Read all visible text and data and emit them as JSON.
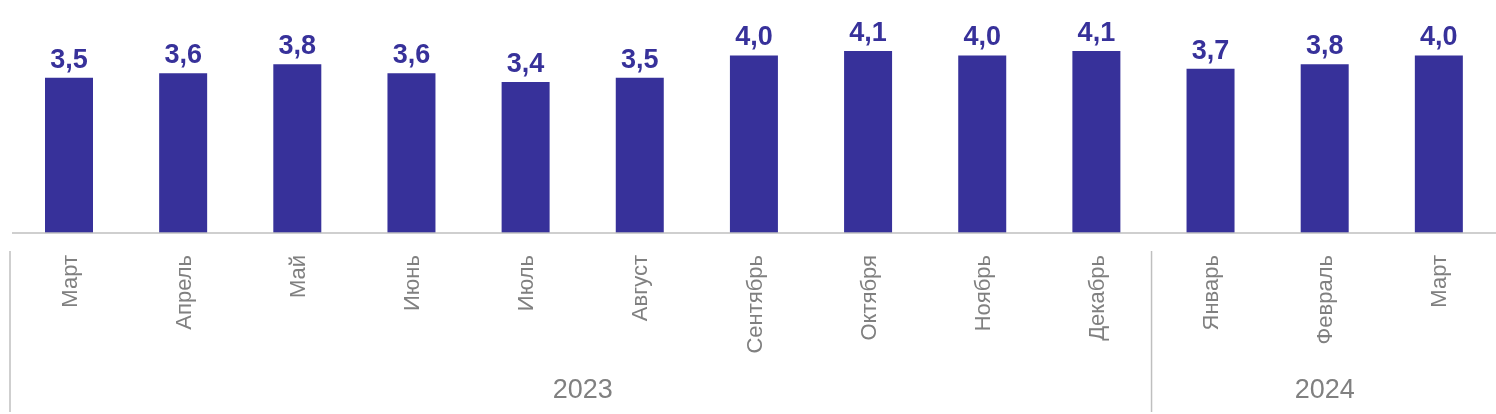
{
  "chart_data": {
    "type": "bar",
    "categories": [
      "Март",
      "Апрель",
      "Май",
      "Июнь",
      "Июль",
      "Август",
      "Сентябрь",
      "Октября",
      "Ноябрь",
      "Декабрь",
      "Январь",
      "Февраль",
      "Март"
    ],
    "values": [
      3.5,
      3.6,
      3.8,
      3.6,
      3.4,
      3.5,
      4.0,
      4.1,
      4.0,
      4.1,
      3.7,
      3.8,
      4.0
    ],
    "value_labels": [
      "3,5",
      "3,6",
      "3,8",
      "3,6",
      "3,4",
      "3,5",
      "4,0",
      "4,1",
      "4,0",
      "4,1",
      "3,7",
      "3,8",
      "4,0"
    ],
    "color": "#37319a",
    "annotations": [
      "2023",
      "2024"
    ]
  }
}
